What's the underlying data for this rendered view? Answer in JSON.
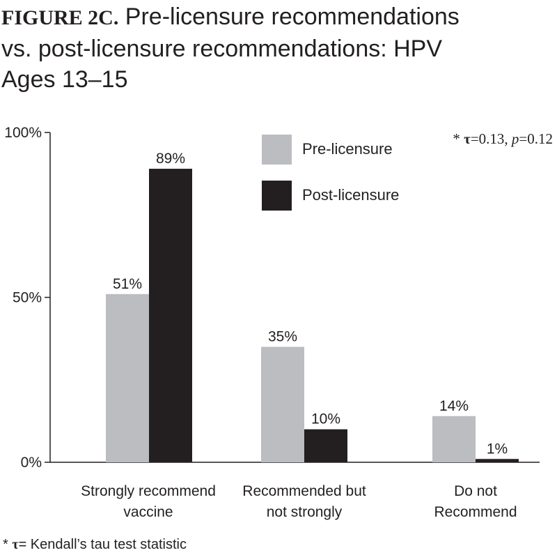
{
  "title": {
    "prefix": "FIGURE 2C.",
    "line1": "Pre-licensure recommendations",
    "line2": "vs. post-licensure recommendations: HPV",
    "line3": "Ages 13–15"
  },
  "stat_note": {
    "star": "* ",
    "tau": "τ",
    "tau_value": "=0.13, ",
    "p": "p",
    "p_value": "=0.12"
  },
  "footnote": {
    "star": "* ",
    "tau": "τ",
    "text": "= Kendall’s tau test statistic"
  },
  "chart_data": {
    "type": "bar",
    "categories": [
      [
        "Strongly recommend",
        "vaccine"
      ],
      [
        "Recommended but",
        "not strongly"
      ],
      [
        "Do not",
        "Recommend"
      ]
    ],
    "series": [
      {
        "name": "Pre-licensure",
        "values": [
          51,
          35,
          14
        ],
        "labels": [
          "51%",
          "35%",
          "14%"
        ],
        "color": "#bcbdc0"
      },
      {
        "name": "Post-licensure",
        "values": [
          89,
          10,
          1
        ],
        "labels": [
          "89%",
          "10%",
          "1%"
        ],
        "color": "#231f20"
      }
    ],
    "y_ticks": [
      {
        "value": 0,
        "label": "0%"
      },
      {
        "value": 50,
        "label": "50%"
      },
      {
        "value": 100,
        "label": "100%"
      }
    ],
    "ylim": [
      0,
      100
    ],
    "legend_position": "top-center",
    "grid": false
  }
}
